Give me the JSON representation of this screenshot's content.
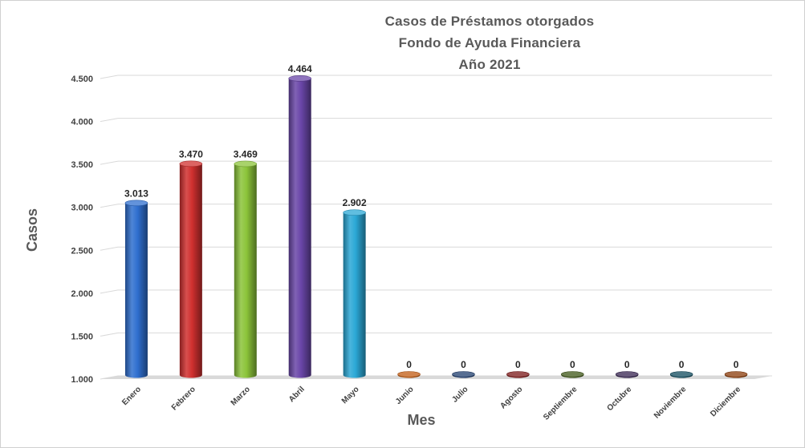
{
  "chart_data": {
    "type": "bar",
    "title": [
      "Casos de Préstamos otorgados",
      "Fondo de Ayuda Financiera",
      "Año 2021"
    ],
    "xlabel": "Mes",
    "ylabel": "Casos",
    "ylim": [
      1000,
      4500
    ],
    "yticks": [
      "1.000",
      "1.500",
      "2.000",
      "2.500",
      "3.000",
      "3.500",
      "4.000",
      "4.500"
    ],
    "grid": true,
    "legend": "none",
    "categories": [
      "Enero",
      "Febrero",
      "Marzo",
      "Abril",
      "Mayo",
      "Junio",
      "Julio",
      "Agosto",
      "Septiembre",
      "Octubre",
      "Noviembre",
      "Diciembre"
    ],
    "values": [
      3013,
      3470,
      3469,
      4464,
      2902,
      0,
      0,
      0,
      0,
      0,
      0,
      0
    ],
    "data_labels": [
      "3.013",
      "3.470",
      "3.469",
      "4.464",
      "2.902",
      "0",
      "0",
      "0",
      "0",
      "0",
      "0",
      "0"
    ],
    "colors": [
      "#2f6fcf",
      "#d0302f",
      "#8cc43a",
      "#6a46a8",
      "#2ba8d6",
      "#c05a10",
      "#1f3d6e",
      "#7a1515",
      "#3e5516",
      "#35234f",
      "#0f4a5c",
      "#8a3a08"
    ]
  }
}
